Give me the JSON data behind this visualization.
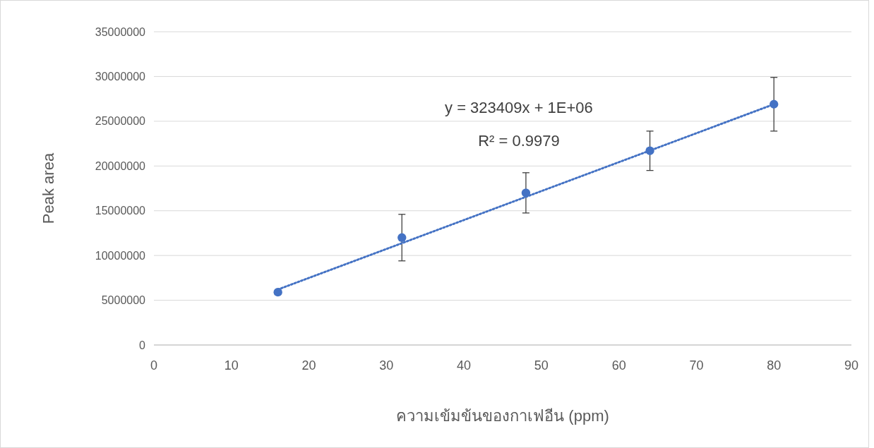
{
  "chart_data": {
    "type": "scatter",
    "xlabel": "ความเข้มข้นของกาเฟอีน (ppm)",
    "ylabel": "Peak area",
    "annotations": [
      "y = 323409x + 1E+06",
      "R² = 0.9979"
    ],
    "xlim": [
      0,
      90
    ],
    "xticks": [
      0,
      10,
      20,
      30,
      40,
      50,
      60,
      70,
      80,
      90
    ],
    "ylim": [
      0,
      35000000
    ],
    "yticks": [
      0,
      5000000,
      10000000,
      15000000,
      20000000,
      25000000,
      30000000,
      35000000
    ],
    "grid": "y",
    "series": [
      {
        "color": "#4472c4",
        "marker": "circle",
        "x": [
          16,
          32,
          48,
          64,
          80
        ],
        "values": [
          5900000,
          12000000,
          17000000,
          21700000,
          26900000
        ],
        "errors": [
          null,
          2600000,
          2250000,
          2200000,
          3000000
        ]
      },
      {
        "type": "line",
        "color": "#4472c4",
        "line_style": "dotted",
        "marker": "none",
        "x": [
          16,
          80
        ],
        "values": [
          6200000,
          26900000
        ]
      }
    ]
  }
}
